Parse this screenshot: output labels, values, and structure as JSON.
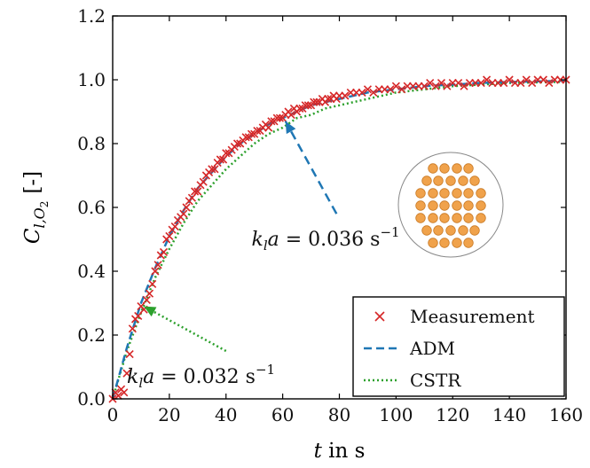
{
  "chart_data": {
    "type": "scatter",
    "xlabel_var": "t",
    "xlabel_rest": " in s",
    "ylabel_var": "C",
    "ylabel_sub": "l,O",
    "ylabel_subsub": "2",
    "ylabel_unit": "[-]",
    "xlim": [
      0,
      160
    ],
    "ylim": [
      0.0,
      1.2
    ],
    "xticks": [
      0,
      20,
      40,
      60,
      80,
      100,
      120,
      140,
      160
    ],
    "yticks": [
      0.0,
      0.2,
      0.4,
      0.6,
      0.8,
      1.0,
      1.2
    ],
    "ytick_labels": [
      "0.0",
      "0.2",
      "0.4",
      "0.6",
      "0.8",
      "1.0",
      "1.2"
    ],
    "grid": false,
    "legend_position": "bottom-right",
    "series": [
      {
        "name": "Measurement",
        "marker": "x",
        "color": "#d62728",
        "x": [
          0,
          1,
          2,
          3,
          4,
          5,
          6,
          7,
          8,
          9,
          10,
          11,
          12,
          13,
          14,
          15,
          16,
          17,
          18,
          19,
          20,
          21,
          22,
          23,
          24,
          25,
          26,
          27,
          28,
          29,
          30,
          31,
          32,
          33,
          34,
          35,
          36,
          37,
          38,
          39,
          40,
          41,
          42,
          43,
          44,
          45,
          46,
          47,
          48,
          49,
          50,
          51,
          52,
          53,
          54,
          55,
          56,
          57,
          58,
          59,
          60,
          61,
          62,
          63,
          64,
          65,
          66,
          67,
          68,
          69,
          70,
          71,
          72,
          73,
          74,
          75,
          76,
          77,
          78,
          79,
          80,
          82,
          84,
          86,
          88,
          90,
          92,
          94,
          96,
          98,
          100,
          102,
          104,
          106,
          108,
          110,
          112,
          114,
          116,
          118,
          120,
          122,
          124,
          126,
          128,
          130,
          132,
          134,
          136,
          138,
          140,
          142,
          144,
          146,
          148,
          150,
          152,
          154,
          156,
          158,
          160
        ],
        "y": [
          0.0,
          0.02,
          0.01,
          0.03,
          0.02,
          0.08,
          0.14,
          0.22,
          0.25,
          0.26,
          0.29,
          0.28,
          0.31,
          0.33,
          0.36,
          0.4,
          0.42,
          0.45,
          0.46,
          0.5,
          0.51,
          0.53,
          0.54,
          0.56,
          0.57,
          0.58,
          0.6,
          0.62,
          0.63,
          0.65,
          0.65,
          0.67,
          0.68,
          0.7,
          0.71,
          0.72,
          0.72,
          0.74,
          0.75,
          0.75,
          0.77,
          0.77,
          0.78,
          0.79,
          0.8,
          0.8,
          0.81,
          0.82,
          0.82,
          0.83,
          0.83,
          0.84,
          0.84,
          0.85,
          0.86,
          0.85,
          0.87,
          0.87,
          0.88,
          0.88,
          0.88,
          0.89,
          0.9,
          0.89,
          0.91,
          0.9,
          0.91,
          0.91,
          0.92,
          0.92,
          0.92,
          0.93,
          0.93,
          0.93,
          0.94,
          0.93,
          0.94,
          0.94,
          0.95,
          0.94,
          0.95,
          0.95,
          0.96,
          0.96,
          0.96,
          0.97,
          0.96,
          0.97,
          0.97,
          0.97,
          0.98,
          0.97,
          0.98,
          0.98,
          0.98,
          0.98,
          0.99,
          0.98,
          0.99,
          0.98,
          0.99,
          0.99,
          0.98,
          0.99,
          0.99,
          0.99,
          1.0,
          0.99,
          0.99,
          0.99,
          1.0,
          0.99,
          0.99,
          1.0,
          0.99,
          1.0,
          1.0,
          0.99,
          1.0,
          1.0,
          1.0
        ]
      },
      {
        "name": "ADM",
        "style": "dashed",
        "color": "#1f77b4",
        "x": [
          0,
          5,
          10,
          15,
          20,
          25,
          30,
          35,
          40,
          45,
          50,
          55,
          60,
          65,
          70,
          75,
          80,
          90,
          100,
          110,
          120,
          130,
          140,
          150,
          160
        ],
        "y": [
          0.0,
          0.16,
          0.3,
          0.41,
          0.51,
          0.59,
          0.66,
          0.71,
          0.76,
          0.8,
          0.83,
          0.86,
          0.88,
          0.9,
          0.92,
          0.93,
          0.94,
          0.96,
          0.97,
          0.98,
          0.985,
          0.99,
          0.993,
          0.995,
          0.997
        ]
      },
      {
        "name": "CSTR",
        "style": "dotted",
        "color": "#2ca02c",
        "x": [
          0,
          5,
          10,
          15,
          20,
          25,
          30,
          35,
          40,
          45,
          50,
          55,
          60,
          65,
          70,
          75,
          80,
          90,
          100,
          110,
          120,
          130,
          140,
          150,
          160
        ],
        "y": [
          0.0,
          0.15,
          0.27,
          0.38,
          0.47,
          0.55,
          0.62,
          0.67,
          0.72,
          0.76,
          0.8,
          0.83,
          0.85,
          0.88,
          0.89,
          0.91,
          0.92,
          0.94,
          0.96,
          0.97,
          0.98,
          0.985,
          0.99,
          0.992,
          0.994
        ]
      }
    ],
    "annotations": [
      {
        "prefix_var": "k",
        "prefix_sub": "l",
        "prefix_var2": "a",
        "equals": " = 0.036 s",
        "superscript": "−1",
        "color": "#1f77b4",
        "arrow_from": [
          79,
          0.58
        ],
        "arrow_to": [
          61,
          0.87
        ],
        "text_at": [
          49,
          0.48
        ]
      },
      {
        "prefix_var": "k",
        "prefix_sub": "l",
        "prefix_var2": "a",
        "equals": " = 0.032 s",
        "superscript": "−1",
        "color": "#2ca02c",
        "arrow_from": [
          40,
          0.15
        ],
        "arrow_to": [
          11,
          0.29
        ],
        "text_at": [
          5,
          0.05
        ]
      }
    ],
    "inset": {
      "type": "reactor-cross-section",
      "ball_color": "#f0a24b",
      "outline_color": "#888888"
    }
  }
}
